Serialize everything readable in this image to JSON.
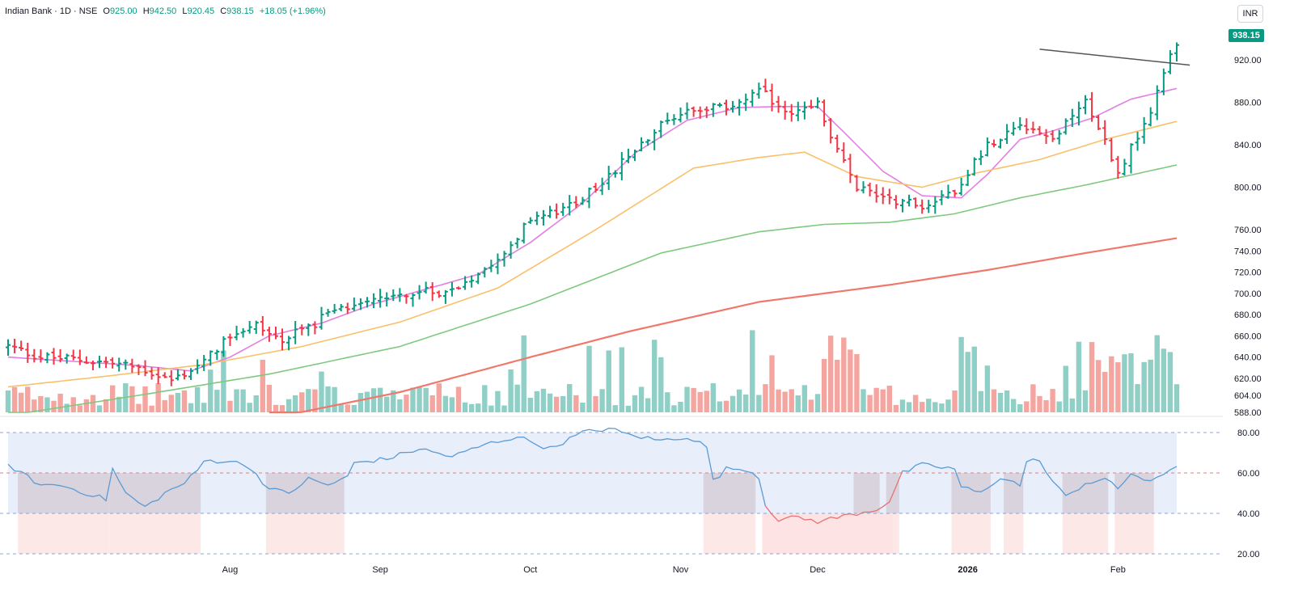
{
  "header": {
    "symbol": "Indian Bank · 1D · NSE",
    "o_label": "O",
    "o_value": "925.00",
    "h_label": "H",
    "h_value": "942.50",
    "l_label": "L",
    "l_value": "920.45",
    "c_label": "C",
    "c_value": "938.15",
    "change": "+18.05 (+1.96%)"
  },
  "currency": "INR",
  "last_price": "938.15",
  "colors": {
    "up": "#089981",
    "down": "#f23645",
    "vol_up": "#8fcfc6",
    "vol_down": "#f5a5a0",
    "ma20": "#e27fe0",
    "ma50": "#f9c06a",
    "ma100": "#7ec97e",
    "ma200": "#f0786b",
    "rsi": "#5b9bd5",
    "rsi_weak": "#e57373",
    "rsi_bg": "#e8eefa",
    "trendline": "#555555",
    "price_tag": "#089981"
  },
  "chart_data": [
    {
      "type": "ohlc",
      "ylim": [
        588,
        955
      ],
      "y_ticks": [
        "920.00",
        "880.00",
        "840.00",
        "800.00",
        "760.00",
        "740.00",
        "720.00",
        "700.00",
        "680.00",
        "660.00",
        "640.00",
        "620.00",
        "604.00",
        "588.00"
      ],
      "x_ticks": [
        "Aug",
        "Sep",
        "Oct",
        "Nov",
        "Dec",
        "2026",
        "Feb"
      ],
      "x_tick_positions": [
        34,
        57,
        80,
        103,
        124,
        147,
        170
      ],
      "bar_count": 180,
      "anchors": [
        [
          0,
          650
        ],
        [
          5,
          640
        ],
        [
          10,
          638
        ],
        [
          15,
          635
        ],
        [
          20,
          630
        ],
        [
          25,
          618
        ],
        [
          30,
          635
        ],
        [
          34,
          662
        ],
        [
          38,
          670
        ],
        [
          42,
          655
        ],
        [
          48,
          676
        ],
        [
          55,
          696
        ],
        [
          62,
          700
        ],
        [
          68,
          703
        ],
        [
          72,
          720
        ],
        [
          76,
          740
        ],
        [
          80,
          770
        ],
        [
          85,
          778
        ],
        [
          90,
          800
        ],
        [
          95,
          828
        ],
        [
          100,
          862
        ],
        [
          105,
          875
        ],
        [
          110,
          875
        ],
        [
          115,
          890
        ],
        [
          120,
          870
        ],
        [
          124,
          880
        ],
        [
          126,
          845
        ],
        [
          130,
          800
        ],
        [
          135,
          790
        ],
        [
          140,
          782
        ],
        [
          145,
          798
        ],
        [
          150,
          840
        ],
        [
          155,
          862
        ],
        [
          160,
          845
        ],
        [
          165,
          885
        ],
        [
          170,
          815
        ],
        [
          175,
          870
        ],
        [
          179,
          938
        ]
      ],
      "overlays": [
        {
          "name": "MA20",
          "anchors": [
            [
              0,
              640
            ],
            [
              10,
              636
            ],
            [
              20,
              632
            ],
            [
              28,
              627
            ],
            [
              34,
              640
            ],
            [
              40,
              660
            ],
            [
              48,
              672
            ],
            [
              56,
              690
            ],
            [
              64,
              704
            ],
            [
              72,
              718
            ],
            [
              80,
              748
            ],
            [
              88,
              785
            ],
            [
              96,
              832
            ],
            [
              104,
              863
            ],
            [
              112,
              875
            ],
            [
              118,
              876
            ],
            [
              124,
              876
            ],
            [
              128,
              852
            ],
            [
              134,
              815
            ],
            [
              140,
              792
            ],
            [
              146,
              790
            ],
            [
              150,
              812
            ],
            [
              155,
              845
            ],
            [
              160,
              853
            ],
            [
              166,
              865
            ],
            [
              172,
              883
            ],
            [
              179,
              893
            ]
          ]
        },
        {
          "name": "MA50",
          "anchors": [
            [
              0,
              612
            ],
            [
              15,
              622
            ],
            [
              30,
              633
            ],
            [
              45,
              650
            ],
            [
              60,
              673
            ],
            [
              75,
              705
            ],
            [
              90,
              760
            ],
            [
              105,
              818
            ],
            [
              115,
              828
            ],
            [
              122,
              833
            ],
            [
              130,
              810
            ],
            [
              140,
              800
            ],
            [
              148,
              813
            ],
            [
              158,
              826
            ],
            [
              168,
              845
            ],
            [
              179,
              862
            ]
          ]
        },
        {
          "name": "MA100",
          "anchors": [
            [
              0,
              585
            ],
            [
              20,
              604
            ],
            [
              40,
              624
            ],
            [
              60,
              650
            ],
            [
              80,
              690
            ],
            [
              100,
              738
            ],
            [
              115,
              758
            ],
            [
              125,
              765
            ],
            [
              135,
              767
            ],
            [
              145,
              775
            ],
            [
              155,
              790
            ],
            [
              165,
              802
            ],
            [
              179,
              821
            ]
          ]
        },
        {
          "name": "MA200",
          "anchors": [
            [
              40,
              582
            ],
            [
              60,
              607
            ],
            [
              80,
              640
            ],
            [
              95,
              664
            ],
            [
              115,
              692
            ],
            [
              135,
              708
            ],
            [
              150,
              722
            ],
            [
              165,
              738
            ],
            [
              179,
              752
            ]
          ]
        }
      ],
      "trendline": [
        [
          158,
          930
        ],
        [
          181,
          915
        ]
      ]
    },
    {
      "type": "line",
      "name": "RSI",
      "ylim": [
        18,
        86
      ],
      "y_ticks": [
        "80.00",
        "60.00",
        "40.00",
        "20.00"
      ],
      "levels": [
        80,
        60,
        40,
        20
      ],
      "anchors": [
        [
          0,
          64
        ],
        [
          2,
          60
        ],
        [
          5,
          54
        ],
        [
          8,
          54
        ],
        [
          12,
          50
        ],
        [
          15,
          47
        ],
        [
          16,
          62
        ],
        [
          18,
          50
        ],
        [
          21,
          43
        ],
        [
          24,
          50
        ],
        [
          27,
          55
        ],
        [
          29,
          61
        ],
        [
          30,
          66
        ],
        [
          34,
          66
        ],
        [
          37,
          63
        ],
        [
          40,
          52
        ],
        [
          43,
          50
        ],
        [
          46,
          57
        ],
        [
          49,
          54
        ],
        [
          52,
          58
        ],
        [
          53,
          65
        ],
        [
          58,
          67
        ],
        [
          63,
          72
        ],
        [
          68,
          68
        ],
        [
          73,
          74
        ],
        [
          78,
          78
        ],
        [
          83,
          72
        ],
        [
          88,
          80
        ],
        [
          92,
          82
        ],
        [
          95,
          79
        ],
        [
          100,
          76
        ],
        [
          104,
          78
        ],
        [
          107,
          73
        ],
        [
          108,
          56
        ],
        [
          110,
          62
        ],
        [
          113,
          62
        ],
        [
          115,
          58
        ],
        [
          116,
          44
        ],
        [
          118,
          37
        ],
        [
          121,
          38
        ],
        [
          124,
          36
        ],
        [
          127,
          38
        ],
        [
          130,
          40
        ],
        [
          133,
          42
        ],
        [
          135,
          46
        ],
        [
          137,
          60
        ],
        [
          140,
          64
        ],
        [
          145,
          62
        ],
        [
          146,
          53
        ],
        [
          149,
          50
        ],
        [
          152,
          58
        ],
        [
          155,
          54
        ],
        [
          156,
          65
        ],
        [
          158,
          67
        ],
        [
          159,
          60
        ],
        [
          162,
          48
        ],
        [
          165,
          55
        ],
        [
          168,
          57
        ],
        [
          170,
          52
        ],
        [
          172,
          60
        ],
        [
          175,
          55
        ],
        [
          179,
          64
        ]
      ],
      "shade_below_60": [
        [
          2,
          15
        ],
        [
          16,
          29
        ],
        [
          40,
          51
        ],
        [
          107,
          110
        ],
        [
          111,
          114
        ],
        [
          130,
          133
        ],
        [
          135,
          136
        ],
        [
          145,
          150
        ],
        [
          153,
          155
        ],
        [
          162,
          168
        ],
        [
          170,
          175
        ]
      ],
      "shade_below_40": [
        [
          116,
          135
        ]
      ]
    }
  ]
}
